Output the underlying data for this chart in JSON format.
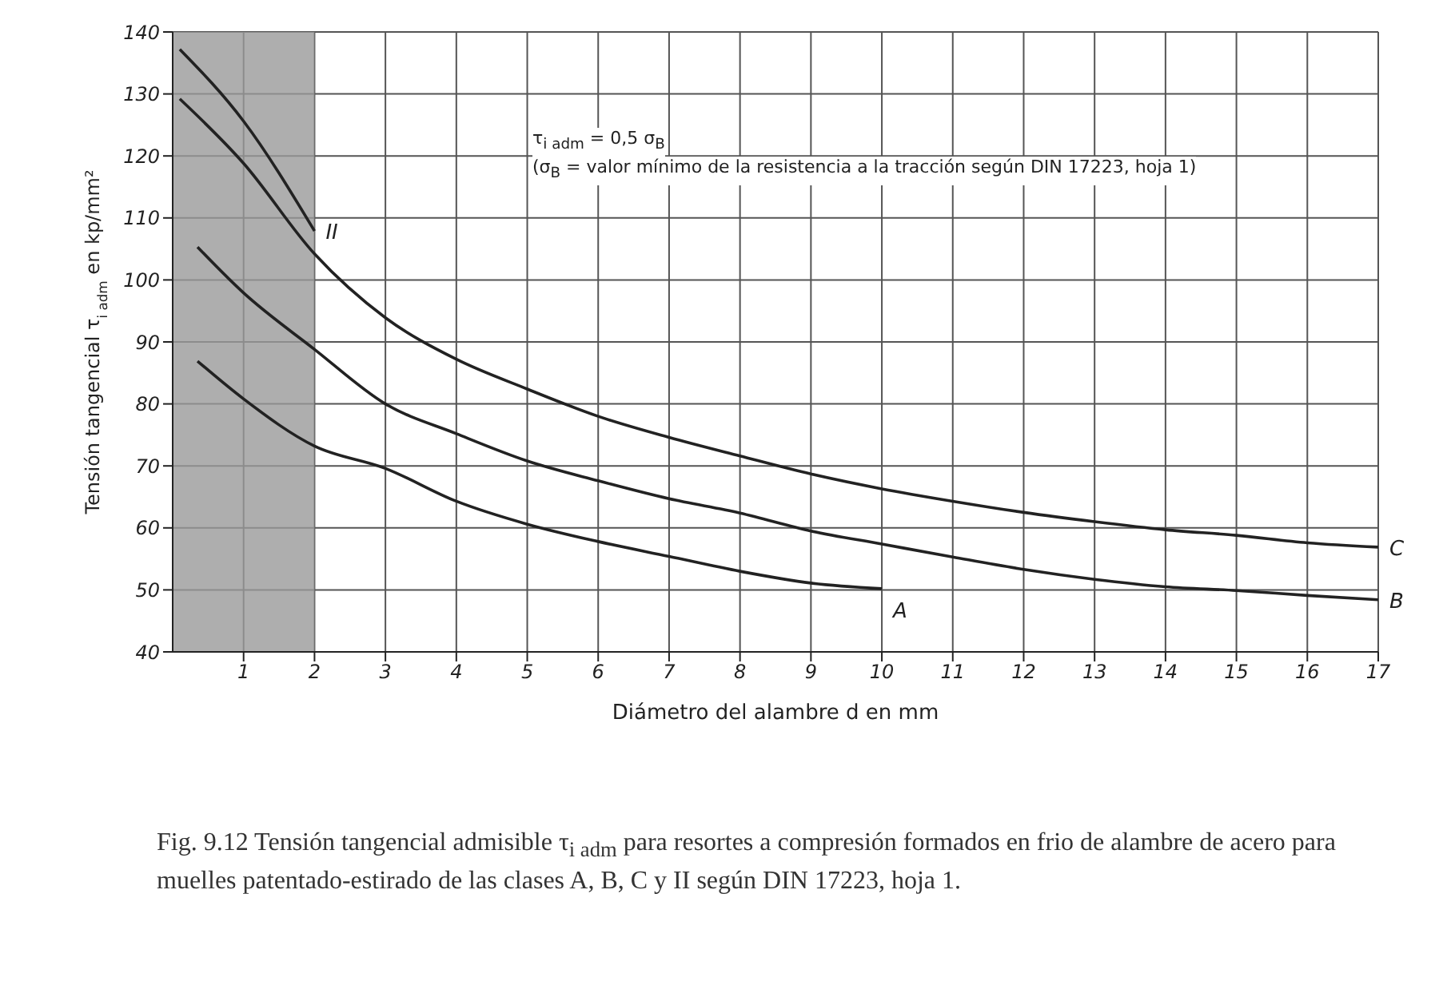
{
  "chart_data": {
    "type": "line",
    "xlabel": "Diámetro del alambre d en mm",
    "ylabel": "Tensión tangencial τ$_{i adm}$ en kp/mm²",
    "xlim": [
      0,
      17
    ],
    "xticks": [
      1,
      2,
      3,
      4,
      5,
      6,
      7,
      8,
      9,
      10,
      11,
      12,
      13,
      14,
      15,
      16,
      17
    ],
    "ylim": [
      40,
      140
    ],
    "yticks": [
      40,
      50,
      60,
      70,
      80,
      90,
      100,
      110,
      120,
      130,
      140
    ],
    "grid": true,
    "legend": false,
    "marker": "none",
    "line_style": "solid",
    "bands": [
      {
        "axis": "x",
        "from": 0,
        "to": 2,
        "color": "#9a9a9a"
      }
    ],
    "series": [
      {
        "name": "II",
        "color": "#222222",
        "x": [
          0.1,
          1,
          2
        ],
        "values": [
          137.2,
          125.6,
          107.9
        ]
      },
      {
        "name": "C",
        "color": "#222222",
        "x": [
          0.1,
          1,
          2,
          3,
          4,
          5,
          6,
          7,
          8,
          9,
          10,
          11,
          12,
          13,
          14,
          15,
          16,
          17
        ],
        "values": [
          129.2,
          118.8,
          104.2,
          93.9,
          87.2,
          82.4,
          78,
          74.6,
          71.6,
          68.7,
          66.3,
          64.3,
          62.5,
          61,
          59.7,
          58.8,
          57.6,
          56.9
        ]
      },
      {
        "name": "B",
        "color": "#222222",
        "x": [
          0.35,
          1,
          2,
          3,
          4,
          5,
          6,
          7,
          8,
          9,
          10,
          11,
          12,
          13,
          14,
          15,
          16,
          17
        ],
        "values": [
          105.3,
          97.9,
          88.8,
          80,
          75.2,
          70.8,
          67.6,
          64.7,
          62.4,
          59.5,
          57.4,
          55.3,
          53.3,
          51.7,
          50.5,
          49.9,
          49.1,
          48.4
        ]
      },
      {
        "name": "A",
        "color": "#222222",
        "x": [
          0.35,
          1,
          2,
          3,
          4,
          5,
          6,
          7,
          8,
          9,
          10
        ],
        "values": [
          86.9,
          80.8,
          73.2,
          69.6,
          64.3,
          60.6,
          57.8,
          55.4,
          53,
          51.1,
          50.2
        ]
      }
    ],
    "annotations": [
      "τ$_{i adm}$ = 0,5 σ$_{B}$",
      "(σ$_{B}$ = valor mínimo de la resistencia a la tracción según DIN 17223, hoja 1)",
      "Fig. 9.12 Tensión tangencial admisible τ$_{i adm}$ para resortes a compresión formados en frio de alambre de acero para muelles patentado-estirado de las clases A, B, C y II según DIN 17223, hoja 1."
    ]
  }
}
